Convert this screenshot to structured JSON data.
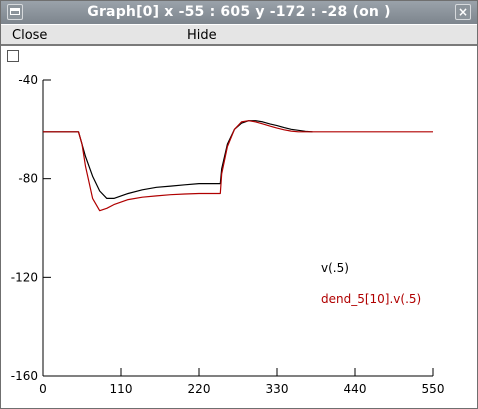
{
  "window": {
    "title": "Graph[0]  x -55 : 605  y -172 : -28 (on )",
    "menu": {
      "close": "Close",
      "hide": "Hide"
    },
    "close_glyph": "×"
  },
  "chart_data": {
    "type": "line",
    "xlim": [
      0,
      550
    ],
    "ylim": [
      -160,
      -40
    ],
    "x_ticks": [
      0,
      110,
      220,
      330,
      440,
      550
    ],
    "y_ticks": [
      -40,
      -80,
      -120,
      -160
    ],
    "x_tick_labels": [
      "0",
      "110",
      "220",
      "330",
      "440",
      "550"
    ],
    "y_tick_labels": [
      "-40",
      "-80",
      "-120",
      "-160"
    ],
    "legend_placement": "lower-right",
    "series": [
      {
        "name": "v(.5)",
        "color": "#000000",
        "x": [
          0,
          45,
          50,
          60,
          70,
          80,
          90,
          100,
          120,
          140,
          160,
          180,
          200,
          220,
          250,
          252,
          260,
          270,
          280,
          290,
          300,
          310,
          320,
          330,
          340,
          350,
          370,
          380
        ],
        "y": [
          -61,
          -61,
          -61,
          -71,
          -79,
          -85,
          -88,
          -88,
          -86,
          -84.5,
          -83.5,
          -83,
          -82.5,
          -82,
          -82,
          -76,
          -66,
          -60,
          -57.5,
          -56.5,
          -56.5,
          -57,
          -57.8,
          -58.5,
          -59.3,
          -60,
          -60.8,
          -61
        ]
      },
      {
        "name": "dend_5[10].v(.5)",
        "color": "#b00000",
        "x": [
          0,
          45,
          50,
          55,
          60,
          70,
          80,
          90,
          100,
          120,
          140,
          160,
          180,
          200,
          220,
          250,
          252,
          260,
          270,
          280,
          290,
          300,
          310,
          320,
          330,
          340,
          350,
          360,
          370,
          400,
          480,
          550
        ],
        "y": [
          -61,
          -61,
          -61,
          -66,
          -75,
          -88,
          -93,
          -92,
          -90.5,
          -88.5,
          -87.5,
          -87,
          -86.5,
          -86.2,
          -86,
          -86,
          -78,
          -67,
          -60,
          -57,
          -56.5,
          -57,
          -57.8,
          -58.7,
          -59.5,
          -60.2,
          -60.7,
          -61,
          -61,
          -61,
          -61,
          -61
        ]
      }
    ]
  }
}
